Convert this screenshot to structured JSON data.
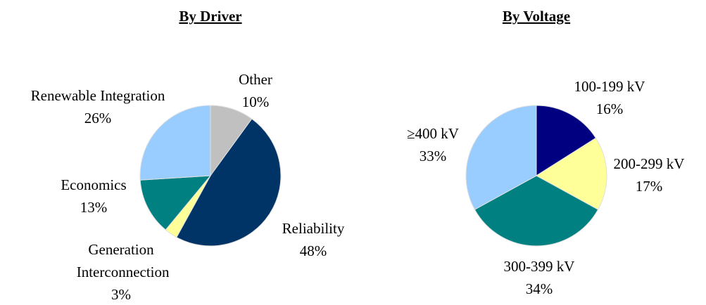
{
  "chart_data": [
    {
      "type": "pie",
      "title": "By Driver",
      "categories": [
        "Other",
        "Reliability",
        "Generation Interconnection",
        "Economics",
        "Renewable Integration"
      ],
      "values": [
        10,
        48,
        3,
        13,
        26
      ],
      "value_labels": [
        "10%",
        "48%",
        "3%",
        "13%",
        "26%"
      ],
      "colors": [
        "#c0c0c0",
        "#003366",
        "#ffff99",
        "#008080",
        "#99ccff"
      ]
    },
    {
      "type": "pie",
      "title": "By Voltage",
      "categories": [
        "100-199 kV",
        "200-299 kV",
        "300-399 kV",
        "≥400 kV"
      ],
      "values": [
        16,
        17,
        34,
        33
      ],
      "value_labels": [
        "16%",
        "17%",
        "34%",
        "33%"
      ],
      "colors": [
        "#000080",
        "#ffff99",
        "#008080",
        "#99ccff"
      ]
    }
  ]
}
